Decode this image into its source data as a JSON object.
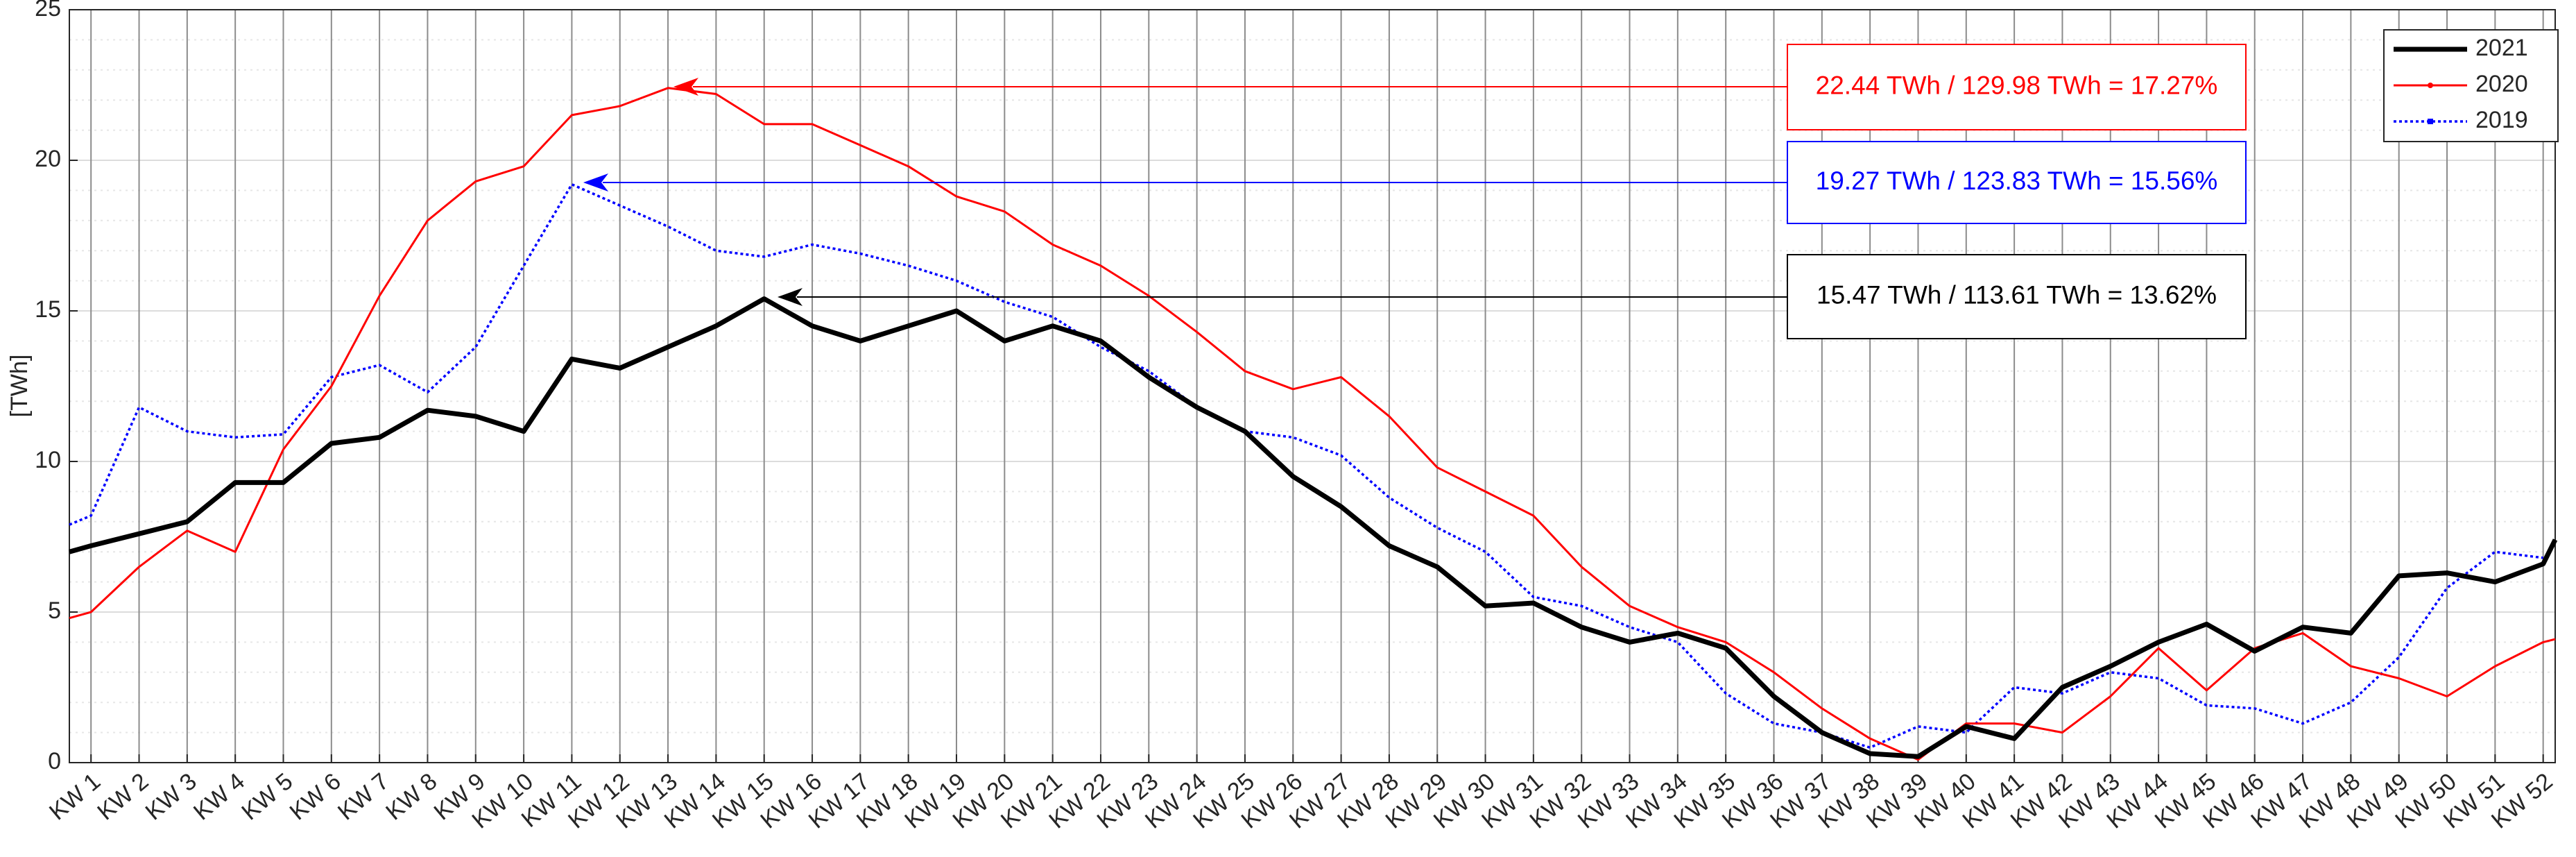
{
  "chart_data": {
    "type": "line",
    "y_label": "[TWh]",
    "x": [
      0.55,
      1,
      2,
      3,
      4,
      5,
      6,
      7,
      8,
      9,
      10,
      11,
      12,
      13,
      14,
      15,
      16,
      17,
      18,
      19,
      20,
      21,
      22,
      23,
      24,
      25,
      26,
      27,
      28,
      29,
      30,
      31,
      32,
      33,
      34,
      35,
      36,
      37,
      38,
      39,
      40,
      41,
      42,
      43,
      44,
      45,
      46,
      47,
      48,
      49,
      50,
      51,
      52,
      52.25
    ],
    "xlim": [
      0.55,
      52.25
    ],
    "xticks": [
      {
        "value": 1,
        "label": "KW 1"
      },
      {
        "value": 2,
        "label": "KW 2"
      },
      {
        "value": 3,
        "label": "KW 3"
      },
      {
        "value": 4,
        "label": "KW 4"
      },
      {
        "value": 5,
        "label": "KW 5"
      },
      {
        "value": 6,
        "label": "KW 6"
      },
      {
        "value": 7,
        "label": "KW 7"
      },
      {
        "value": 8,
        "label": "KW 8"
      },
      {
        "value": 9,
        "label": "KW 9"
      },
      {
        "value": 10,
        "label": "KW 10"
      },
      {
        "value": 11,
        "label": "KW 11"
      },
      {
        "value": 12,
        "label": "KW 12"
      },
      {
        "value": 13,
        "label": "KW 13"
      },
      {
        "value": 14,
        "label": "KW 14"
      },
      {
        "value": 15,
        "label": "KW 15"
      },
      {
        "value": 16,
        "label": "KW 16"
      },
      {
        "value": 17,
        "label": "KW 17"
      },
      {
        "value": 18,
        "label": "KW 18"
      },
      {
        "value": 19,
        "label": "KW 19"
      },
      {
        "value": 20,
        "label": "KW 20"
      },
      {
        "value": 21,
        "label": "KW 21"
      },
      {
        "value": 22,
        "label": "KW 22"
      },
      {
        "value": 23,
        "label": "KW 23"
      },
      {
        "value": 24,
        "label": "KW 24"
      },
      {
        "value": 25,
        "label": "KW 25"
      },
      {
        "value": 26,
        "label": "KW 26"
      },
      {
        "value": 27,
        "label": "KW 27"
      },
      {
        "value": 28,
        "label": "KW 28"
      },
      {
        "value": 29,
        "label": "KW 29"
      },
      {
        "value": 30,
        "label": "KW 30"
      },
      {
        "value": 31,
        "label": "KW 31"
      },
      {
        "value": 32,
        "label": "KW 32"
      },
      {
        "value": 33,
        "label": "KW 33"
      },
      {
        "value": 34,
        "label": "KW 34"
      },
      {
        "value": 35,
        "label": "KW 35"
      },
      {
        "value": 36,
        "label": "KW 36"
      },
      {
        "value": 37,
        "label": "KW 37"
      },
      {
        "value": 38,
        "label": "KW 38"
      },
      {
        "value": 39,
        "label": "KW 39"
      },
      {
        "value": 40,
        "label": "KW 40"
      },
      {
        "value": 41,
        "label": "KW 41"
      },
      {
        "value": 42,
        "label": "KW 42"
      },
      {
        "value": 43,
        "label": "KW 43"
      },
      {
        "value": 44,
        "label": "KW 44"
      },
      {
        "value": 45,
        "label": "KW 45"
      },
      {
        "value": 46,
        "label": "KW 46"
      },
      {
        "value": 47,
        "label": "KW 47"
      },
      {
        "value": 48,
        "label": "KW 48"
      },
      {
        "value": 49,
        "label": "KW 49"
      },
      {
        "value": 50,
        "label": "KW 50"
      },
      {
        "value": 51,
        "label": "KW 51"
      },
      {
        "value": 52,
        "label": "KW 52"
      }
    ],
    "ylim": [
      0,
      25
    ],
    "yticks": [
      0,
      5,
      10,
      15,
      20,
      25
    ],
    "grid": true,
    "minor_grid": true,
    "legend_position": "upper right",
    "series": [
      {
        "name": "2021",
        "color": "#000000",
        "line_style": "solid",
        "line_width": 7,
        "marker": "none",
        "values": [
          7.0,
          7.2,
          7.6,
          8.0,
          9.3,
          9.3,
          10.6,
          10.8,
          11.7,
          11.5,
          11.0,
          13.4,
          13.1,
          13.8,
          14.5,
          15.4,
          14.5,
          14.0,
          14.5,
          15.0,
          14.0,
          14.5,
          14.0,
          12.8,
          11.8,
          11.0,
          9.5,
          8.5,
          7.2,
          6.5,
          5.2,
          5.3,
          4.5,
          4.0,
          4.3,
          3.8,
          2.2,
          1.0,
          0.3,
          0.2,
          1.2,
          0.8,
          2.5,
          3.2,
          4.0,
          4.6,
          3.7,
          4.5,
          4.3,
          6.2,
          6.3,
          6.0,
          6.6,
          7.4
        ]
      },
      {
        "name": "2020",
        "color": "#ff0000",
        "line_style": "solid",
        "line_width": 3,
        "marker": "dot",
        "values": [
          4.8,
          5.0,
          6.5,
          7.7,
          7.0,
          10.4,
          12.5,
          15.5,
          18.0,
          19.3,
          19.8,
          21.5,
          21.8,
          22.4,
          22.2,
          21.2,
          21.2,
          20.5,
          19.8,
          18.8,
          18.3,
          17.2,
          16.5,
          15.5,
          14.3,
          13.0,
          12.4,
          12.8,
          11.5,
          9.8,
          9.0,
          8.2,
          6.5,
          5.2,
          4.5,
          4.0,
          3.0,
          1.8,
          0.8,
          0.1,
          1.3,
          1.3,
          1.0,
          2.2,
          3.8,
          2.4,
          3.8,
          4.3,
          3.2,
          2.8,
          2.2,
          3.2,
          4.0,
          4.1
        ]
      },
      {
        "name": "2019",
        "color": "#0000ff",
        "line_style": "dotted",
        "line_width": 3.5,
        "marker": "square",
        "values": [
          7.9,
          8.2,
          11.8,
          11.0,
          10.8,
          10.9,
          12.8,
          13.2,
          12.3,
          13.8,
          16.5,
          19.2,
          18.5,
          17.8,
          17.0,
          16.8,
          17.2,
          16.9,
          16.5,
          16.0,
          15.3,
          14.8,
          13.8,
          13.0,
          11.8,
          11.0,
          10.8,
          10.2,
          8.8,
          7.8,
          7.0,
          5.5,
          5.2,
          4.5,
          4.0,
          2.3,
          1.3,
          1.0,
          0.5,
          1.2,
          1.0,
          2.5,
          2.3,
          3.0,
          2.8,
          1.9,
          1.8,
          1.3,
          2.0,
          3.5,
          5.8,
          7.0,
          6.8,
          null
        ]
      }
    ],
    "annotations": [
      {
        "text": "22.44 TWh / 129.98 TWh = 17.27%",
        "color": "#ff0000"
      },
      {
        "text": "19.27 TWh / 123.83 TWh = 15.56%",
        "color": "#0000ff"
      },
      {
        "text": "15.47 TWh / 113.61 TWh = 13.62%",
        "color": "#000000"
      }
    ]
  }
}
